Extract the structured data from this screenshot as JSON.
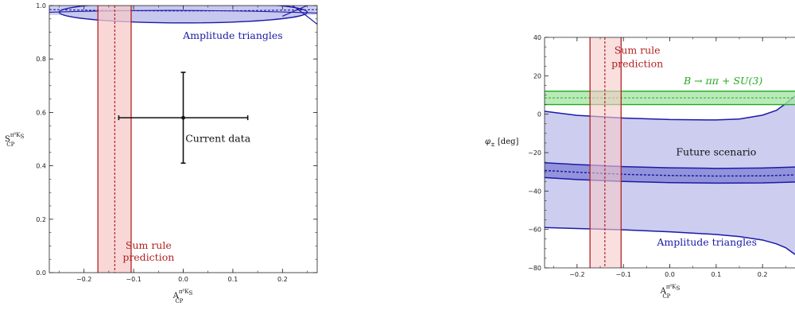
{
  "chart_data": [
    {
      "type": "scatter",
      "title": "",
      "xlabel": "A",
      "xlabel_sub": "CP",
      "xlabel_sup": "π⁰K",
      "xlabel_sup_sub": "S",
      "ylabel": "S",
      "ylabel_sub": "CP",
      "ylabel_sup": "π⁰K",
      "ylabel_sup_sub": "S",
      "xlim": [
        -0.27,
        0.27
      ],
      "ylim": [
        0.0,
        1.0
      ],
      "xticks": [
        -0.2,
        -0.1,
        0.0,
        0.1,
        0.2
      ],
      "xtick_labels": [
        "−0.2",
        "−0.1",
        "0.0",
        "0.1",
        "0.2"
      ],
      "yticks": [
        0.0,
        0.2,
        0.4,
        0.6,
        0.8,
        1.0
      ],
      "ytick_labels": [
        "0.0",
        "0.2",
        "0.4",
        "0.6",
        "0.8",
        "1.0"
      ],
      "grid": false,
      "sum_rule_band": {
        "x_min": -0.172,
        "x_max": -0.105,
        "x_center": -0.138,
        "color": "#b22222"
      },
      "current_data": {
        "x": 0.0,
        "y": 0.58,
        "x_err": [
          0.13,
          0.13
        ],
        "y_err": [
          0.17,
          0.17
        ]
      },
      "amplitude_triangles": {
        "x_center": 0.0,
        "y_center": 0.975,
        "x_half_width": 0.25,
        "y_half_height": 0.04,
        "color": "#1a1aa8"
      },
      "annotations": [
        {
          "text": "Amplitude triangles",
          "x": 0.1,
          "y": 0.875,
          "color": "#1a1aa8"
        },
        {
          "text": "Current data",
          "x": 0.07,
          "y": 0.49,
          "color": "#111111"
        },
        {
          "text": "Sum rule",
          "x": -0.07,
          "y": 0.09,
          "color": "#b22222"
        },
        {
          "text": "prediction",
          "x": -0.07,
          "y": 0.045,
          "color": "#b22222"
        }
      ]
    },
    {
      "type": "area",
      "title": "",
      "xlabel": "A",
      "xlabel_sub": "CP",
      "xlabel_sup": "π⁰K",
      "xlabel_sup_sub": "S",
      "ylabel": "φ",
      "ylabel_sub": "±",
      "ylabel_unit": "[deg]",
      "xlim": [
        -0.27,
        0.27
      ],
      "ylim": [
        -80,
        40
      ],
      "xticks": [
        -0.2,
        -0.1,
        0.0,
        0.1,
        0.2
      ],
      "xtick_labels": [
        "−0.2",
        "−0.1",
        "0.0",
        "0.1",
        "0.2"
      ],
      "yticks": [
        -80,
        -60,
        -40,
        -20,
        0,
        20,
        40
      ],
      "ytick_labels": [
        "−80",
        "−60",
        "−40",
        "−20",
        "0",
        "20",
        "40"
      ],
      "grid": false,
      "sum_rule_band": {
        "x_min": -0.172,
        "x_max": -0.105,
        "x_center": -0.14,
        "color": "#b22222"
      },
      "su3_band": {
        "y_min": 5,
        "y_max": 12,
        "y_center": 8.5,
        "color": "#22aa22"
      },
      "amplitude_triangles": {
        "color": "#1a1aa8",
        "upper": {
          "x": [
            -0.27,
            -0.2,
            -0.1,
            0.0,
            0.1,
            0.15,
            0.2,
            0.23,
            0.25,
            0.27
          ],
          "y": [
            1.5,
            -0.6,
            -2.0,
            -2.8,
            -3.0,
            -2.5,
            -0.5,
            2.0,
            5.5,
            9.5
          ]
        },
        "lower": {
          "x": [
            -0.27,
            -0.2,
            -0.1,
            0.0,
            0.1,
            0.15,
            0.2,
            0.23,
            0.25,
            0.27
          ],
          "y": [
            -59,
            -59.5,
            -60.2,
            -61.2,
            -62.6,
            -63.7,
            -65.5,
            -67.5,
            -69.5,
            -73
          ]
        }
      },
      "future_scenario": {
        "color": "#1a1aa8",
        "x": [
          -0.27,
          -0.2,
          -0.1,
          0.0,
          0.1,
          0.2,
          0.27
        ],
        "upper": [
          -25.3,
          -26.2,
          -27.3,
          -27.9,
          -28.2,
          -28.0,
          -27.5
        ],
        "center": [
          -29.3,
          -30.2,
          -31.3,
          -31.9,
          -32.2,
          -32.1,
          -31.6
        ],
        "lower": [
          -33.0,
          -34.0,
          -35.0,
          -35.6,
          -35.9,
          -35.8,
          -35.3
        ]
      },
      "annotations": [
        {
          "text": "Sum rule",
          "x": -0.07,
          "y": 31.5,
          "color": "#b22222"
        },
        {
          "text": "prediction",
          "x": -0.07,
          "y": 24.5,
          "color": "#b22222"
        },
        {
          "text": "B → ππ + SU(3)",
          "x": 0.115,
          "y": 15.5,
          "color": "#22aa22"
        },
        {
          "text": "Future scenario",
          "x": 0.1,
          "y": -21.5,
          "color": "#111111"
        },
        {
          "text": "Amplitude triangles",
          "x": 0.08,
          "y": -68.5,
          "color": "#1a1aa8"
        }
      ]
    }
  ]
}
